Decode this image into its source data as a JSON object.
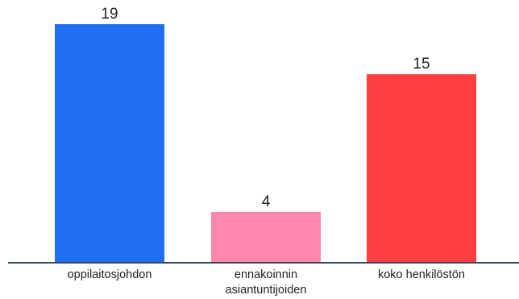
{
  "chart_data": {
    "type": "bar",
    "categories": [
      [
        "oppilaitosjohdon"
      ],
      [
        "ennakoinnin",
        "asiantuntijoiden"
      ],
      [
        "koko henkilöstön"
      ]
    ],
    "values": [
      19,
      4,
      15
    ],
    "colors": [
      "#1f6ff2",
      "#ff86ac",
      "#ff3f3f"
    ],
    "axis_color": "#3a4654",
    "title": "",
    "xlabel": "",
    "ylabel": "",
    "ylim": [
      0,
      19
    ],
    "grid": false,
    "legend": "none"
  }
}
